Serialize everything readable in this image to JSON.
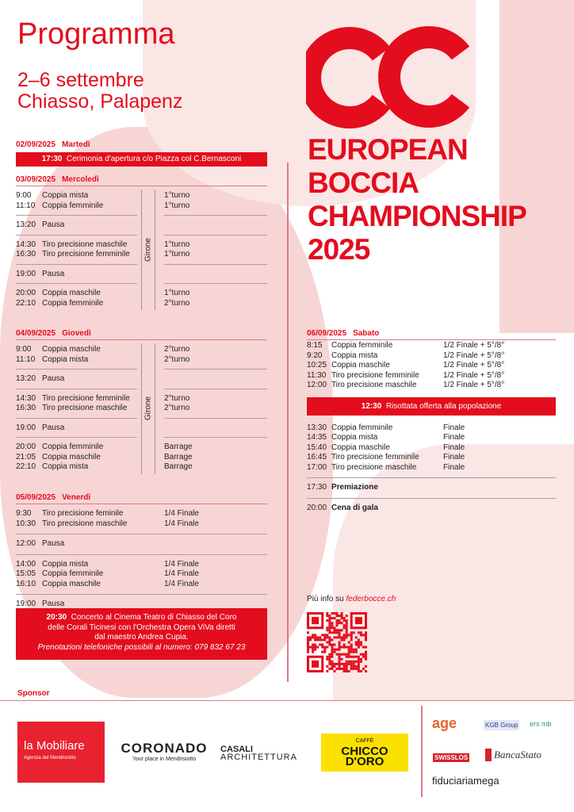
{
  "header": {
    "title": "Programma",
    "dates": "2–6 settembre",
    "place": "Chiasso, Palapenz"
  },
  "brand": {
    "line1": "EUROPEAN",
    "line2": "BOCCIA",
    "line3": "CHAMPIONSHIP",
    "line4": "2025",
    "accent": "#e30d1d"
  },
  "days": {
    "tue": {
      "date": "02/09/2025",
      "day": "Martedì",
      "event_time": "17:30",
      "event": "Cerimonia d'apertura c/o Piazza col C.Bernasconi"
    },
    "wed": {
      "date": "03/09/2025",
      "day": "Mercoledì",
      "girone": "Girone",
      "groups": [
        [
          [
            "9:00",
            "Coppia mista",
            "1°turno"
          ],
          [
            "11:10",
            "Coppia femminile",
            "1°turno"
          ]
        ],
        [
          [
            "13:20",
            "Pausa",
            ""
          ]
        ],
        [
          [
            "14:30",
            "Tiro precisione maschile",
            "1°turno"
          ],
          [
            "16:30",
            "Tiro precisione femminile",
            "1°turno"
          ]
        ],
        [
          [
            "19:00",
            "Pausa",
            ""
          ]
        ],
        [
          [
            "20:00",
            "Coppia maschile",
            "1°turno"
          ],
          [
            "22:10",
            "Coppia femminile",
            "2°turno"
          ]
        ]
      ]
    },
    "thu": {
      "date": "04/09/2025",
      "day": "Giovedì",
      "girone": "Girone",
      "groups": [
        [
          [
            "9:00",
            "Coppia maschile",
            "2°turno"
          ],
          [
            "11:10",
            "Coppia mista",
            "2°turno"
          ]
        ],
        [
          [
            "13:20",
            "Pausa",
            ""
          ]
        ],
        [
          [
            "14:30",
            "Tiro precisione femminile",
            "2°turno"
          ],
          [
            "16:30",
            "Tiro precisione maschile",
            "2°turno"
          ]
        ],
        [
          [
            "19:00",
            "Pausa",
            ""
          ]
        ],
        [
          [
            "20:00",
            "Coppia femminile",
            "Barrage"
          ],
          [
            "21:05",
            "Coppia maschile",
            "Barrage"
          ],
          [
            "22:10",
            "Coppia mista",
            "Barrage"
          ]
        ]
      ]
    },
    "fri": {
      "date": "05/09/2025",
      "day": "Venerdì",
      "groups": [
        [
          [
            "9:30",
            "Tiro precisione feminile",
            "1/4 Finale"
          ],
          [
            "10:30",
            "Tiro precisione maschile",
            "1/4 Finale"
          ]
        ],
        [
          [
            "12:00",
            "Pausa",
            ""
          ]
        ],
        [
          [
            "14:00",
            "Coppia mista",
            "1/4 Finale"
          ],
          [
            "15:05",
            "Coppia femminile",
            "1/4 Finale"
          ],
          [
            "16:10",
            "Coppia maschile",
            "1/4 Finale"
          ]
        ],
        [
          [
            "19:00",
            "Pausa",
            ""
          ]
        ]
      ],
      "concert": {
        "time": "20:30",
        "line1": "Concerto al Cinema Teatro di Chiasso del Coro",
        "line2": "delle Corali Ticinesi con l'Orchestra Opera ViVa diretti",
        "line3": "dal maestro Andrea Cupia.",
        "note": "Prenotazioni telefoniche possibili al numero: 079 832 67 23"
      }
    },
    "sat": {
      "date": "06/09/2025",
      "day": "Sabato",
      "morning": [
        [
          "8:15",
          "Coppia femminile",
          "1/2 Finale + 5°/8°"
        ],
        [
          "9:20",
          "Coppia mista",
          "1/2 Finale + 5°/8°"
        ],
        [
          "10:25",
          "Coppia maschile",
          "1/2 Finale + 5°/8°"
        ],
        [
          "11:30",
          "Tiro precisione femminile",
          "1/2 Finale + 5°/8°"
        ],
        [
          "12:00",
          "Tiro precisione maschile",
          "1/2 Finale + 5°/8°"
        ]
      ],
      "lunch_time": "12:30",
      "lunch": "Risottata offerta alla popolazione",
      "afternoon": [
        [
          "13:30",
          "Coppia femminile",
          "Finale"
        ],
        [
          "14:35",
          "Coppia mista",
          "Finale"
        ],
        [
          "15:40",
          "Coppia maschile",
          "Finale"
        ],
        [
          "16:45",
          "Tiro precisione femminile",
          "Finale"
        ],
        [
          "17:00",
          "Tiro precisione maschile",
          "Finale"
        ]
      ],
      "award_time": "17:30",
      "award": "Premiazione",
      "gala_time": "20:00",
      "gala": "Cena di gala"
    }
  },
  "info": {
    "prefix": "Più info su ",
    "link": "federbocce.ch"
  },
  "sponsor": {
    "label": "Sponsor",
    "items": [
      "la Mobiliare",
      "Agenzia del Mendrisiotto",
      "CORONADO",
      "Your place in Mendrisiotto",
      "CASALI",
      "ARCHITETTURA",
      "CAFFÈ",
      "CHICCO",
      "D'ORO",
      "age",
      "KGB Group",
      "ers mb",
      "SWISSLOS",
      "BancaStato",
      "fiduciariamega"
    ]
  }
}
